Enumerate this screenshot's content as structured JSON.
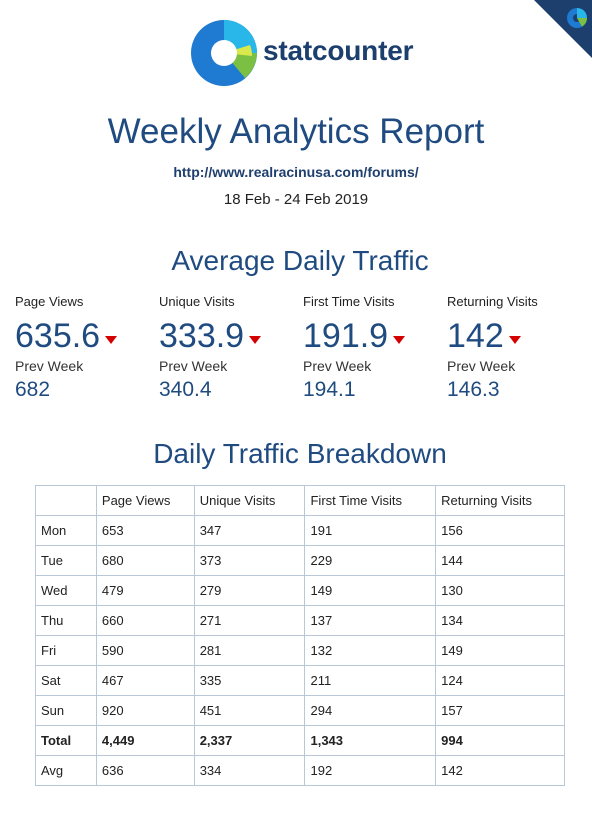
{
  "brand": {
    "logo_text": "statcounter",
    "colors": {
      "navy": "#1d3f6e",
      "blue": "#1f7ad1",
      "light_blue": "#29b6e8",
      "green": "#7bc043",
      "yellow": "#d9e84a",
      "arrow_down": "#d40000"
    }
  },
  "header": {
    "title": "Weekly Analytics Report",
    "url": "http://www.realracinusa.com/forums/",
    "date_range": "18 Feb - 24 Feb 2019"
  },
  "average": {
    "title": "Average Daily Traffic",
    "prev_label": "Prev Week",
    "kpis": [
      {
        "label": "Page Views",
        "value": "635.6",
        "prev": "682",
        "trend": "down"
      },
      {
        "label": "Unique Visits",
        "value": "333.9",
        "prev": "340.4",
        "trend": "down"
      },
      {
        "label": "First Time Visits",
        "value": "191.9",
        "prev": "194.1",
        "trend": "down"
      },
      {
        "label": "Returning Visits",
        "value": "142",
        "prev": "146.3",
        "trend": "down"
      }
    ]
  },
  "breakdown": {
    "title": "Daily Traffic Breakdown",
    "headers": [
      "",
      "Page Views",
      "Unique Visits",
      "First Time Visits",
      "Returning Visits"
    ],
    "rows": [
      [
        "Mon",
        "653",
        "347",
        "191",
        "156"
      ],
      [
        "Tue",
        "680",
        "373",
        "229",
        "144"
      ],
      [
        "Wed",
        "479",
        "279",
        "149",
        "130"
      ],
      [
        "Thu",
        "660",
        "271",
        "137",
        "134"
      ],
      [
        "Fri",
        "590",
        "281",
        "132",
        "149"
      ],
      [
        "Sat",
        "467",
        "335",
        "211",
        "124"
      ],
      [
        "Sun",
        "920",
        "451",
        "294",
        "157"
      ],
      [
        "Total",
        "4,449",
        "2,337",
        "1,343",
        "994"
      ],
      [
        "Avg",
        "636",
        "334",
        "192",
        "142"
      ]
    ]
  }
}
